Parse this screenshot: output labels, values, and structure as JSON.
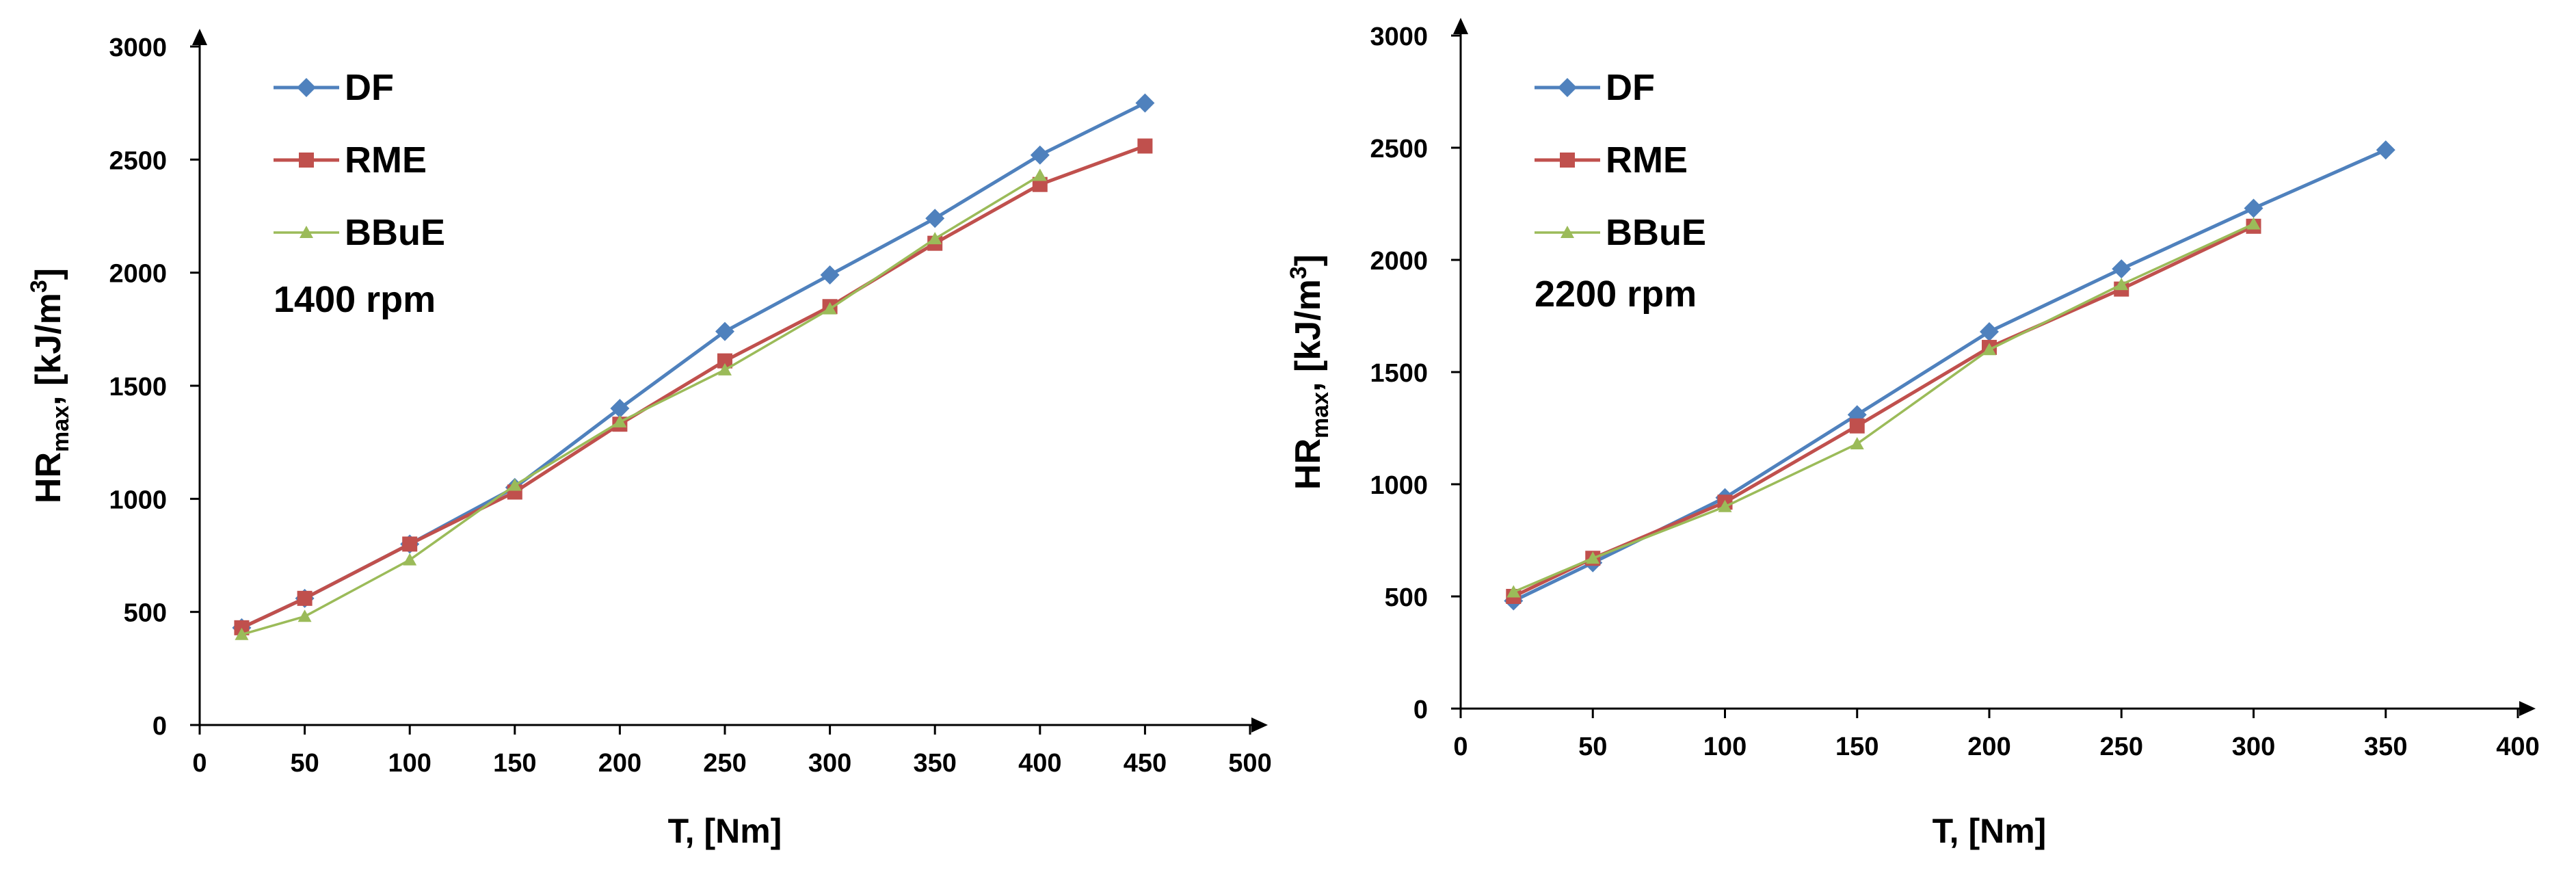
{
  "colors": {
    "DF": "#4F81BD",
    "RME": "#C0504D",
    "BBuE": "#9BBB59",
    "axis": "#000000"
  },
  "chart_data": [
    {
      "type": "line",
      "annotation": "1400 rpm",
      "xlabel": "T, [Nm]",
      "ylabel_main": "HR",
      "ylabel_sub": "max",
      "ylabel_rest": ", [kJ/m",
      "ylabel_sup": "3",
      "ylabel_end": "]",
      "xlim": [
        0,
        500
      ],
      "ylim": [
        0,
        3000
      ],
      "xticks": [
        "0",
        "50",
        "100",
        "150",
        "200",
        "250",
        "300",
        "350",
        "400",
        "450",
        "500"
      ],
      "yticks": [
        "0",
        "500",
        "1000",
        "1500",
        "2000",
        "2500",
        "3000"
      ],
      "legend_position": "top-left",
      "series": [
        {
          "name": "DF",
          "marker": "diamond",
          "x": [
            20,
            50,
            100,
            150,
            200,
            250,
            300,
            350,
            400,
            450
          ],
          "y": [
            430,
            560,
            800,
            1050,
            1400,
            1740,
            1990,
            2240,
            2520,
            2750
          ]
        },
        {
          "name": "RME",
          "marker": "square",
          "x": [
            20,
            50,
            100,
            150,
            200,
            250,
            300,
            350,
            400,
            450
          ],
          "y": [
            430,
            560,
            800,
            1030,
            1330,
            1610,
            1850,
            2130,
            2390,
            2560
          ]
        },
        {
          "name": "BBuE",
          "marker": "triangle",
          "x": [
            20,
            50,
            100,
            150,
            200,
            250,
            300,
            350,
            400
          ],
          "y": [
            400,
            480,
            730,
            1060,
            1340,
            1570,
            1840,
            2150,
            2430
          ]
        }
      ]
    },
    {
      "type": "line",
      "annotation": "2200 rpm",
      "xlabel": "T, [Nm]",
      "ylabel_main": "HR",
      "ylabel_sub": "max",
      "ylabel_rest": ", [kJ/m",
      "ylabel_sup": "3",
      "ylabel_end": "]",
      "xlim": [
        0,
        400
      ],
      "ylim": [
        0,
        3000
      ],
      "xticks": [
        "0",
        "50",
        "100",
        "150",
        "200",
        "250",
        "300",
        "350",
        "400"
      ],
      "yticks": [
        "0",
        "500",
        "1000",
        "1500",
        "2000",
        "2500",
        "3000"
      ],
      "legend_position": "top-left",
      "series": [
        {
          "name": "DF",
          "marker": "diamond",
          "x": [
            20,
            50,
            100,
            150,
            200,
            250,
            300,
            350
          ],
          "y": [
            480,
            650,
            940,
            1310,
            1680,
            1960,
            2230,
            2490
          ]
        },
        {
          "name": "RME",
          "marker": "square",
          "x": [
            20,
            50,
            100,
            150,
            200,
            250,
            300
          ],
          "y": [
            500,
            670,
            920,
            1260,
            1610,
            1870,
            2150
          ]
        },
        {
          "name": "BBuE",
          "marker": "triangle",
          "x": [
            20,
            50,
            100,
            150,
            200,
            250,
            300
          ],
          "y": [
            520,
            670,
            900,
            1180,
            1600,
            1890,
            2160
          ]
        }
      ]
    }
  ]
}
